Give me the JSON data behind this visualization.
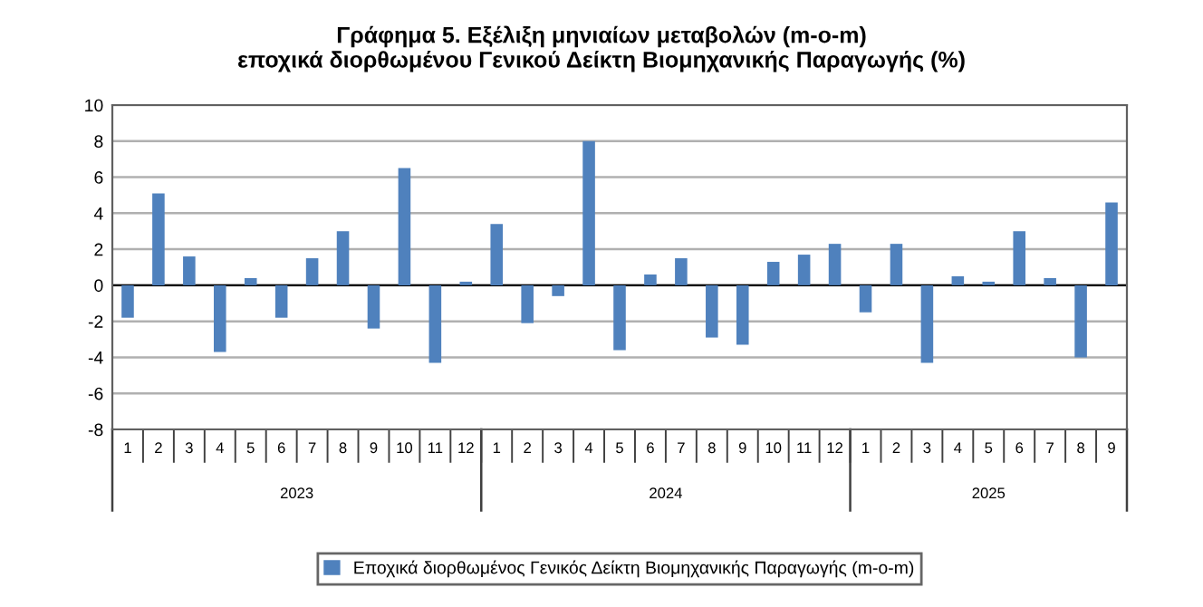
{
  "chart_data": {
    "type": "bar",
    "title": "Γράφημα 5. Εξέλιξη μηνιαίων μεταβολών (m-o-m)\nεποχικά διορθωμένου Γενικού Δείκτη Βιομηχανικής Παραγωγής (%)",
    "categories": [
      "1",
      "2",
      "3",
      "4",
      "5",
      "6",
      "7",
      "8",
      "9",
      "10",
      "11",
      "12",
      "1",
      "2",
      "3",
      "4",
      "5",
      "6",
      "7",
      "8",
      "9",
      "10",
      "11",
      "12",
      "1",
      "2",
      "3",
      "4",
      "5",
      "6",
      "7",
      "8",
      "9"
    ],
    "series": [
      {
        "name": "Εποχικά διορθωμένος Γενικός Δείκτη Βιομηχανικής Παραγωγής (m-o-m)",
        "color": "#4f81bd",
        "values": [
          -1.8,
          5.1,
          1.6,
          -3.7,
          0.4,
          -1.8,
          1.5,
          3.0,
          -2.4,
          6.5,
          -4.3,
          0.2,
          3.4,
          -2.1,
          -0.6,
          8.0,
          -3.6,
          0.6,
          1.5,
          -2.9,
          -3.3,
          1.3,
          1.7,
          2.3,
          -1.5,
          2.3,
          -4.3,
          0.5,
          0.2,
          3.0,
          0.4,
          -4.0,
          4.6
        ]
      }
    ],
    "annotations": [
      "2023",
      "2024",
      "2025"
    ],
    "ylim": [
      -8,
      10
    ],
    "yticks": [
      -8,
      -6,
      -4,
      -2,
      0,
      2,
      4,
      6,
      8,
      10
    ],
    "grid": "y",
    "legend": "bottom"
  }
}
